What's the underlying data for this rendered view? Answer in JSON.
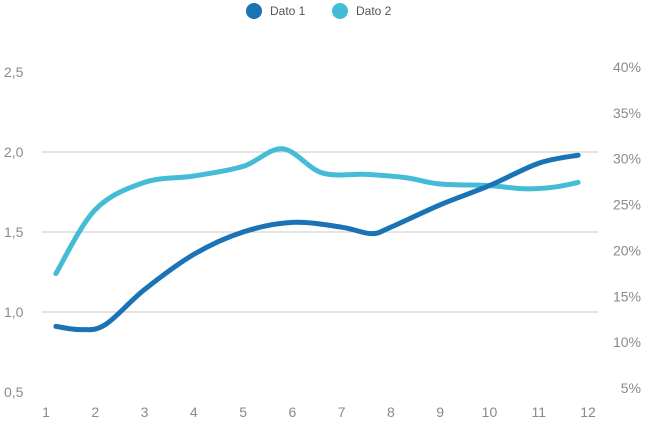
{
  "chart_data": {
    "type": "line",
    "x": [
      1.2,
      1.7,
      2.2,
      3,
      4,
      5,
      6,
      7,
      7.6,
      8,
      9,
      10,
      11,
      11.8
    ],
    "x_ticks": [
      "1",
      "2",
      "3",
      "4",
      "5",
      "6",
      "7",
      "8",
      "9",
      "10",
      "11",
      "12"
    ],
    "xlim": [
      1,
      12
    ],
    "y_left_ticks": [
      "0,5",
      "1,0",
      "1,5",
      "2,0",
      "2,5"
    ],
    "y_left_lim": [
      0.5,
      2.5
    ],
    "y_right_ticks": [
      "5%",
      "10%",
      "15%",
      "20%",
      "25%",
      "30%",
      "35%",
      "40%"
    ],
    "y_right_lim": [
      5,
      40
    ],
    "series": [
      {
        "name": "Dato 1",
        "axis": "left",
        "color": "#1a73b5",
        "x": [
          1.2,
          1.7,
          2.2,
          3,
          4,
          5,
          6,
          7,
          7.6,
          8,
          9,
          10,
          11,
          11.8
        ],
        "values": [
          0.91,
          0.89,
          0.92,
          1.14,
          1.36,
          1.5,
          1.56,
          1.53,
          1.49,
          1.53,
          1.67,
          1.79,
          1.93,
          1.98
        ]
      },
      {
        "name": "Dato 2",
        "axis": "left",
        "color": "#45bcd6",
        "x": [
          1.2,
          2,
          3,
          4,
          5,
          5.8,
          6.6,
          7.5,
          8.3,
          9,
          10,
          10.7,
          11.3,
          11.8
        ],
        "values": [
          1.24,
          1.64,
          1.81,
          1.85,
          1.91,
          2.02,
          1.87,
          1.86,
          1.84,
          1.8,
          1.79,
          1.77,
          1.78,
          1.81
        ]
      }
    ],
    "gridlines": [
      1.0,
      1.5,
      2.0
    ],
    "legend_position": "top-center"
  }
}
